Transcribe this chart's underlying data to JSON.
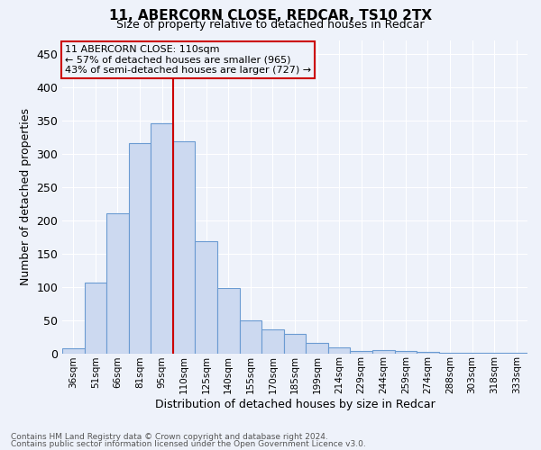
{
  "title1": "11, ABERCORN CLOSE, REDCAR, TS10 2TX",
  "title2": "Size of property relative to detached houses in Redcar",
  "xlabel": "Distribution of detached houses by size in Redcar",
  "ylabel": "Number of detached properties",
  "categories": [
    "36sqm",
    "51sqm",
    "66sqm",
    "81sqm",
    "95sqm",
    "110sqm",
    "125sqm",
    "140sqm",
    "155sqm",
    "170sqm",
    "185sqm",
    "199sqm",
    "214sqm",
    "229sqm",
    "244sqm",
    "259sqm",
    "274sqm",
    "288sqm",
    "303sqm",
    "318sqm",
    "333sqm"
  ],
  "values": [
    7,
    106,
    210,
    316,
    345,
    319,
    168,
    98,
    50,
    36,
    29,
    16,
    9,
    4,
    5,
    4,
    2,
    1,
    1,
    1,
    1
  ],
  "bar_facecolor": "#ccd9f0",
  "bar_edgecolor": "#6b9bd2",
  "vline_color": "#cc0000",
  "annotation_box_color": "#cc0000",
  "annotation_text_line1": "11 ABERCORN CLOSE: 110sqm",
  "annotation_text_line2": "← 57% of detached houses are smaller (965)",
  "annotation_text_line3": "43% of semi-detached houses are larger (727) →",
  "ylim": [
    0,
    470
  ],
  "yticks": [
    0,
    50,
    100,
    150,
    200,
    250,
    300,
    350,
    400,
    450
  ],
  "bg_color": "#eef2fa",
  "grid_color": "#ffffff",
  "footer1": "Contains HM Land Registry data © Crown copyright and database right 2024.",
  "footer2": "Contains public sector information licensed under the Open Government Licence v3.0."
}
